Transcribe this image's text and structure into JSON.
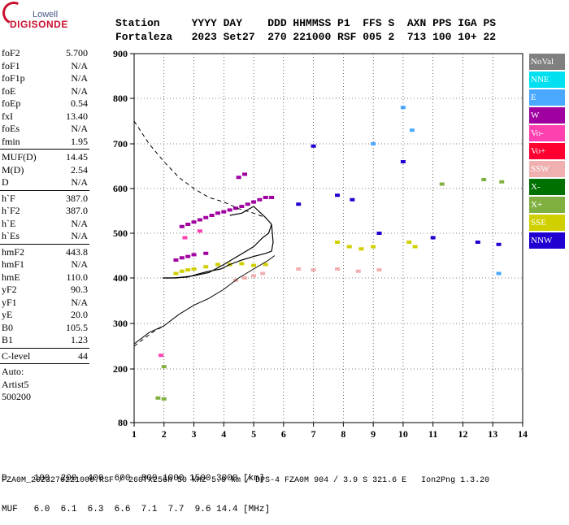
{
  "logo": {
    "top": "Lowell",
    "main": "DIGISONDE"
  },
  "header": {
    "row1": "Station     YYYY DAY    DDD HHMMSS P1  FFS S  AXN PPS IGA PS",
    "row2": "Fortaleza   2023 Set27  270 221000 RSF 005 2  713 100 10+ 22"
  },
  "params": [
    {
      "label": "foF2",
      "value": "5.700"
    },
    {
      "label": "foF1",
      "value": "N/A"
    },
    {
      "label": "foF1p",
      "value": "N/A"
    },
    {
      "label": "foE",
      "value": "N/A"
    },
    {
      "label": "foEp",
      "value": "0.54"
    },
    {
      "label": "fxI",
      "value": "13.40"
    },
    {
      "label": "foEs",
      "value": "N/A"
    },
    {
      "label": "fmin",
      "value": "1.95"
    },
    {
      "sep": true
    },
    {
      "label": "MUF(D)",
      "value": "14.45"
    },
    {
      "label": "M(D)",
      "value": "2.54"
    },
    {
      "label": "D",
      "value": "N/A"
    },
    {
      "sep": true
    },
    {
      "label": "h`F",
      "value": "387.0"
    },
    {
      "label": "h`F2",
      "value": "387.0"
    },
    {
      "label": "h`E",
      "value": "N/A"
    },
    {
      "label": "h`Es",
      "value": "N/A"
    },
    {
      "sep": true
    },
    {
      "label": "hmF2",
      "value": "443.8"
    },
    {
      "label": "hmF1",
      "value": "N/A"
    },
    {
      "label": "hmE",
      "value": "110.0"
    },
    {
      "label": "yF2",
      "value": "90.3"
    },
    {
      "label": "yF1",
      "value": "N/A"
    },
    {
      "label": "yE",
      "value": "20.0"
    },
    {
      "label": "B0",
      "value": "105.5"
    },
    {
      "label": "B1",
      "value": "1.23"
    },
    {
      "sep": true
    },
    {
      "label": "C-level",
      "value": "44"
    },
    {
      "sep": true
    },
    {
      "free": "Auto:"
    },
    {
      "free": "Artist5"
    },
    {
      "free": "500200"
    }
  ],
  "legend": [
    {
      "label": "NoVal",
      "color": "#808080"
    },
    {
      "label": "NNE",
      "color": "#00e0f0"
    },
    {
      "label": "E",
      "color": "#4aa8ff"
    },
    {
      "label": "W",
      "color": "#a000a0"
    },
    {
      "label": "Vo-",
      "color": "#ff40b0"
    },
    {
      "label": "Vo+",
      "color": "#ff0030"
    },
    {
      "label": "SSW",
      "color": "#f0b0b0"
    },
    {
      "label": "X-",
      "color": "#007000"
    },
    {
      "label": "X+",
      "color": "#80b040"
    },
    {
      "label": "SSE",
      "color": "#d0d000"
    },
    {
      "label": "NNW",
      "color": "#2000d0"
    }
  ],
  "bottom": {
    "row1": "D     100  200  400  600  800 1000 1500 3000 [km]",
    "row2": "MUF   6.0  6.1  6.3  6.6  7.1  7.7  9.6 14.4 [MHz]"
  },
  "footer": "FZA0M_2023270221000.RSF / 260fx256h 50 kHz 5.0 km / DPS-4 FZA0M 904 / 3.9 S 321.6 E   Ion2Png 1.3.20",
  "chart_data": {
    "type": "scatter",
    "title": "",
    "xlabel": "",
    "ylabel": "",
    "xlim": [
      1,
      14
    ],
    "ylim": [
      80,
      900
    ],
    "x_ticks": [
      1,
      2,
      3,
      4,
      5,
      6,
      7,
      8,
      9,
      10,
      11,
      12,
      13,
      14
    ],
    "y_ticks": [
      80,
      200,
      300,
      400,
      500,
      600,
      700,
      800,
      900
    ],
    "grid": true,
    "y_scale": "nonlinear",
    "series": [
      {
        "id": "trace_W",
        "legend": "W",
        "color": "#a000a0",
        "points": [
          [
            2.6,
            515
          ],
          [
            2.8,
            520
          ],
          [
            3.0,
            525
          ],
          [
            3.2,
            530
          ],
          [
            3.4,
            535
          ],
          [
            3.6,
            540
          ],
          [
            3.8,
            545
          ],
          [
            4.0,
            548
          ],
          [
            4.2,
            552
          ],
          [
            4.4,
            556
          ],
          [
            4.6,
            560
          ],
          [
            4.8,
            565
          ],
          [
            5.0,
            570
          ],
          [
            5.2,
            575
          ],
          [
            5.4,
            580
          ],
          [
            5.6,
            580
          ],
          [
            2.4,
            440
          ],
          [
            2.6,
            445
          ],
          [
            2.8,
            448
          ],
          [
            3.0,
            452
          ],
          [
            3.4,
            455
          ],
          [
            4.5,
            625
          ],
          [
            4.7,
            632
          ]
        ]
      },
      {
        "id": "trace_SSE",
        "legend": "SSE",
        "color": "#d0d000",
        "points": [
          [
            2.4,
            410
          ],
          [
            2.6,
            415
          ],
          [
            2.8,
            418
          ],
          [
            3.0,
            420
          ],
          [
            3.4,
            425
          ],
          [
            3.8,
            430
          ],
          [
            4.2,
            430
          ],
          [
            4.6,
            432
          ],
          [
            5.0,
            428
          ],
          [
            5.4,
            430
          ],
          [
            7.8,
            480
          ],
          [
            8.2,
            470
          ],
          [
            8.6,
            465
          ],
          [
            9.0,
            470
          ],
          [
            10.2,
            480
          ],
          [
            10.4,
            470
          ]
        ]
      },
      {
        "id": "trace_SSW",
        "legend": "SSW",
        "color": "#f0b0b0",
        "points": [
          [
            4.4,
            395
          ],
          [
            4.7,
            400
          ],
          [
            5.0,
            405
          ],
          [
            5.3,
            410
          ],
          [
            6.5,
            420
          ],
          [
            7.0,
            418
          ],
          [
            7.8,
            420
          ],
          [
            8.5,
            415
          ],
          [
            9.2,
            418
          ]
        ]
      },
      {
        "id": "trace_NNW",
        "legend": "NNW",
        "color": "#2000d0",
        "points": [
          [
            6.5,
            565
          ],
          [
            7.0,
            695
          ],
          [
            7.8,
            585
          ],
          [
            8.3,
            575
          ],
          [
            9.2,
            500
          ],
          [
            10.0,
            660
          ],
          [
            11.0,
            490
          ],
          [
            12.5,
            480
          ],
          [
            13.2,
            475
          ]
        ]
      },
      {
        "id": "trace_E",
        "legend": "E",
        "color": "#4aa8ff",
        "points": [
          [
            9.0,
            700
          ],
          [
            10.0,
            780
          ],
          [
            10.3,
            730
          ],
          [
            13.2,
            410
          ]
        ]
      },
      {
        "id": "trace_X",
        "legend": "X+",
        "color": "#80b040",
        "points": [
          [
            1.8,
            135
          ],
          [
            2.0,
            133
          ],
          [
            2.0,
            205
          ],
          [
            11.3,
            610
          ],
          [
            12.7,
            620
          ],
          [
            13.3,
            615
          ]
        ]
      },
      {
        "id": "trace_Vo",
        "legend": "Vo-",
        "color": "#ff40b0",
        "points": [
          [
            1.9,
            230
          ],
          [
            2.7,
            490
          ],
          [
            3.2,
            505
          ]
        ]
      }
    ],
    "profile": {
      "legend": "",
      "points": [
        [
          2.0,
          400
        ],
        [
          2.3,
          400
        ],
        [
          2.8,
          402
        ],
        [
          3.1,
          408
        ],
        [
          3.5,
          415
        ],
        [
          3.9,
          420
        ],
        [
          4.2,
          430
        ],
        [
          4.6,
          440
        ],
        [
          5.0,
          448
        ],
        [
          5.4,
          455
        ],
        [
          5.6,
          460
        ],
        [
          5.65,
          480
        ],
        [
          5.6,
          520
        ],
        [
          5.4,
          535
        ],
        [
          5.0,
          560
        ],
        [
          4.6,
          545
        ],
        [
          4.2,
          540
        ]
      ]
    },
    "virtual_curve": {
      "points": [
        [
          1.95,
          400
        ],
        [
          2.4,
          400
        ],
        [
          3.0,
          405
        ],
        [
          3.5,
          412
        ],
        [
          4.0,
          430
        ],
        [
          4.5,
          450
        ],
        [
          5.0,
          470
        ],
        [
          5.3,
          490
        ],
        [
          5.5,
          500
        ],
        [
          5.6,
          520
        ]
      ]
    },
    "extraordinary_curve": {
      "points": [
        [
          1.0,
          255
        ],
        [
          1.5,
          280
        ],
        [
          2.0,
          295
        ],
        [
          2.5,
          320
        ],
        [
          3.0,
          340
        ],
        [
          3.5,
          355
        ],
        [
          4.0,
          375
        ],
        [
          4.5,
          400
        ],
        [
          5.0,
          420
        ],
        [
          5.5,
          440
        ],
        [
          5.7,
          450
        ]
      ]
    },
    "dashed_curve": {
      "points": [
        [
          1.0,
          750
        ],
        [
          1.5,
          700
        ],
        [
          2.0,
          660
        ],
        [
          2.5,
          625
        ],
        [
          3.0,
          600
        ],
        [
          3.5,
          580
        ],
        [
          4.0,
          570
        ],
        [
          4.5,
          555
        ],
        [
          5.0,
          545
        ],
        [
          5.4,
          535
        ]
      ]
    },
    "dashed_curve_low": {
      "points": [
        [
          1.0,
          250
        ],
        [
          1.3,
          265
        ],
        [
          1.6,
          280
        ],
        [
          2.0,
          295
        ]
      ]
    }
  }
}
